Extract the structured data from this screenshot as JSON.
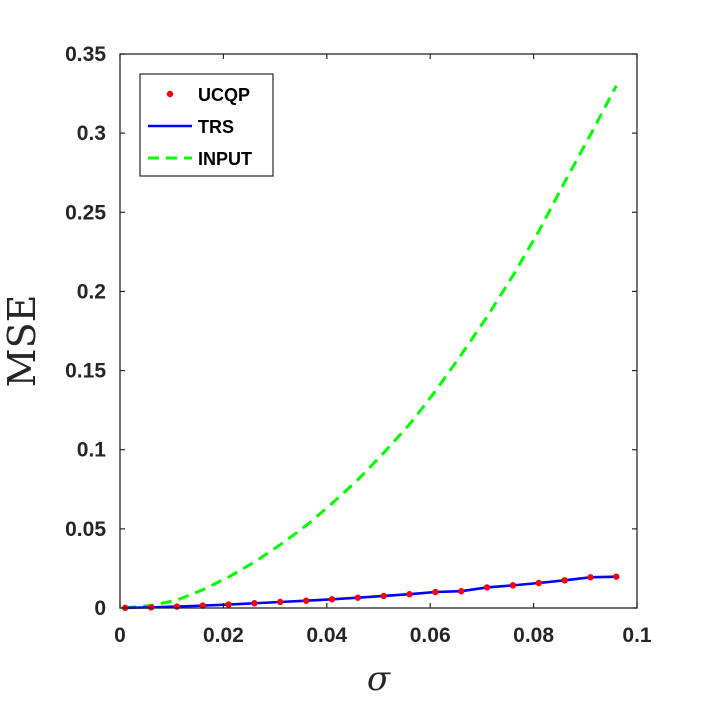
{
  "chart_data": {
    "type": "line",
    "title": "",
    "xlabel": "σ",
    "ylabel": "MSE",
    "xlim": [
      0,
      0.1
    ],
    "ylim": [
      0,
      0.35
    ],
    "x_ticks": [
      0,
      0.02,
      0.04,
      0.06,
      0.08,
      0.1
    ],
    "x_tick_labels": [
      "0",
      "0.02",
      "0.04",
      "0.06",
      "0.08",
      "0.1"
    ],
    "y_ticks": [
      0,
      0.05,
      0.1,
      0.15,
      0.2,
      0.25,
      0.3,
      0.35
    ],
    "y_tick_labels": [
      "0",
      "0.05",
      "0.1",
      "0.15",
      "0.2",
      "0.25",
      "0.3",
      "0.35"
    ],
    "grid": false,
    "legend_position": "top-left",
    "series": [
      {
        "name": "UCQP",
        "style": "markers",
        "color": "#ff0000",
        "x": [
          0.001,
          0.006,
          0.011,
          0.016,
          0.021,
          0.026,
          0.031,
          0.036,
          0.041,
          0.046,
          0.051,
          0.056,
          0.061,
          0.066,
          0.071,
          0.076,
          0.081,
          0.086,
          0.091,
          0.096
        ],
        "y": [
          0.0001,
          0.0004,
          0.0009,
          0.0015,
          0.0022,
          0.003,
          0.0038,
          0.0046,
          0.0055,
          0.0065,
          0.0076,
          0.0087,
          0.0101,
          0.0106,
          0.013,
          0.0143,
          0.0158,
          0.0175,
          0.0194,
          0.0198
        ]
      },
      {
        "name": "TRS",
        "style": "solid",
        "color": "#0000ff",
        "x": [
          0.001,
          0.006,
          0.011,
          0.016,
          0.021,
          0.026,
          0.031,
          0.036,
          0.041,
          0.046,
          0.051,
          0.056,
          0.061,
          0.066,
          0.071,
          0.076,
          0.081,
          0.086,
          0.091,
          0.096
        ],
        "y": [
          0.0001,
          0.0004,
          0.0009,
          0.0015,
          0.0022,
          0.003,
          0.0038,
          0.0046,
          0.0055,
          0.0065,
          0.0076,
          0.0087,
          0.0101,
          0.0106,
          0.013,
          0.0143,
          0.0158,
          0.0175,
          0.0194,
          0.0198
        ]
      },
      {
        "name": "INPUT",
        "style": "dashed",
        "color": "#00ff00",
        "x": [
          0.001,
          0.006,
          0.011,
          0.016,
          0.021,
          0.026,
          0.031,
          0.036,
          0.041,
          0.046,
          0.051,
          0.056,
          0.061,
          0.066,
          0.071,
          0.076,
          0.081,
          0.086,
          0.091,
          0.096
        ],
        "y": [
          0.0001,
          0.0015,
          0.005,
          0.0115,
          0.0195,
          0.029,
          0.04,
          0.052,
          0.066,
          0.081,
          0.098,
          0.116,
          0.137,
          0.16,
          0.184,
          0.21,
          0.238,
          0.269,
          0.299,
          0.33
        ]
      }
    ]
  }
}
